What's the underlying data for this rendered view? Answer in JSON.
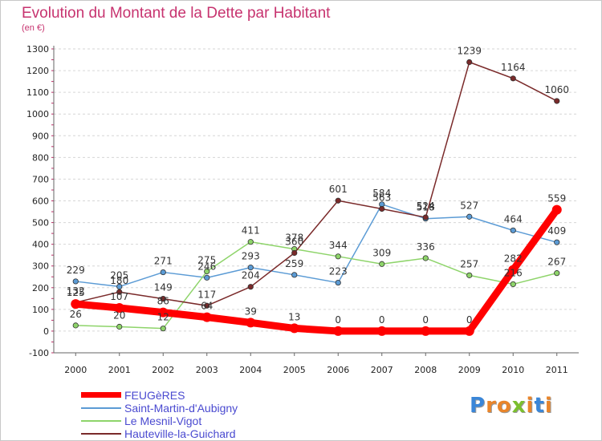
{
  "title": "Evolution du Montant de la Dette par Habitant",
  "unit_label": "(en €)",
  "logo": {
    "letters": [
      "P",
      "r",
      "o",
      "x",
      "i",
      "t",
      "i"
    ],
    "colors": [
      "#3a86d8",
      "#e9852a",
      "#e9852a",
      "#7bbf2e",
      "#e9852a",
      "#3a86d8",
      "#e9852a"
    ]
  },
  "chart_data": {
    "type": "line",
    "title": "Evolution du Montant de la Dette par Habitant",
    "ylabel": "(en €)",
    "xlabel": "",
    "x": [
      "2000",
      "2001",
      "2002",
      "2003",
      "2004",
      "2005",
      "2006",
      "2007",
      "2008",
      "2009",
      "2010",
      "2011"
    ],
    "ylim": [
      -100,
      1300
    ],
    "yticks": [
      "-100",
      "0",
      "100",
      "200",
      "300",
      "400",
      "500",
      "600",
      "700",
      "800",
      "900",
      "1000",
      "1100",
      "1200",
      "1300"
    ],
    "grid": "horizontal dashed",
    "legend_position": "bottom-left",
    "series": [
      {
        "name": "FEUGèRES",
        "color": "#ff0000",
        "values": [
          125,
          107,
          86,
          64,
          39,
          13,
          0,
          0,
          0,
          0,
          282,
          559
        ],
        "labels": [
          "125",
          "107",
          "86",
          "64",
          "39",
          "13",
          "0",
          "0",
          "0",
          "0",
          "282",
          "559"
        ]
      },
      {
        "name": "Saint-Martin-d'Aubigny",
        "color": "#5b9bd5",
        "values": [
          229,
          205,
          271,
          246,
          293,
          259,
          223,
          584,
          518,
          527,
          464,
          409
        ],
        "labels": [
          "229",
          "205",
          "271",
          "246",
          "293",
          "259",
          "223",
          "584",
          "518",
          "527",
          "464",
          "409"
        ]
      },
      {
        "name": "Le Mesnil-Vigot",
        "color": "#8ed46a",
        "values": [
          26,
          20,
          12,
          275,
          411,
          378,
          344,
          309,
          336,
          257,
          216,
          267
        ],
        "labels": [
          "26",
          "20",
          "12",
          "275",
          "411",
          "378",
          "344",
          "309",
          "336",
          "257",
          "216",
          "267"
        ]
      },
      {
        "name": "Hauteville-la-Guichard",
        "color": "#7a2a2a",
        "values": [
          132,
          180,
          149,
          117,
          204,
          360,
          601,
          563,
          524,
          1239,
          1164,
          1060
        ],
        "labels": [
          "132",
          "180",
          "149",
          "117",
          "204",
          "360",
          "601",
          "563",
          "524",
          "1239",
          "1164",
          "1060"
        ]
      }
    ]
  }
}
